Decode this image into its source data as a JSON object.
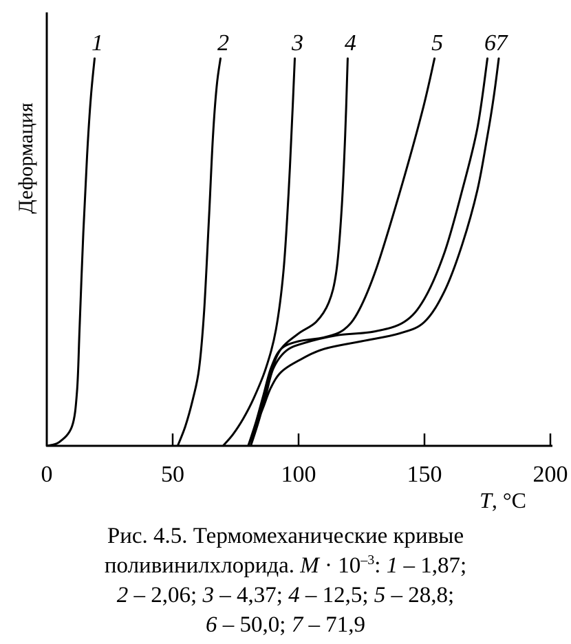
{
  "chart_data": {
    "type": "line",
    "ylabel": "Деформация",
    "xlabel_symbol": "T",
    "xlabel_unit": ", °C",
    "xlim": [
      0,
      200
    ],
    "ylim": [
      0,
      1
    ],
    "x_ticks": [
      0,
      50,
      100,
      150,
      200
    ],
    "x_tick_labels": [
      "0",
      "50",
      "100",
      "150",
      "200"
    ],
    "y_ticks": [],
    "grid": false,
    "legend": "curve labels at top",
    "series": [
      {
        "name": "1",
        "points": [
          [
            0,
            0
          ],
          [
            5,
            0.01
          ],
          [
            10,
            0.05
          ],
          [
            12,
            0.14
          ],
          [
            13,
            0.3
          ],
          [
            14.5,
            0.55
          ],
          [
            16,
            0.75
          ],
          [
            17.5,
            0.9
          ],
          [
            19,
            1.0
          ]
        ]
      },
      {
        "name": "2",
        "points": [
          [
            52,
            0
          ],
          [
            55,
            0.05
          ],
          [
            58,
            0.12
          ],
          [
            60.5,
            0.2
          ],
          [
            62.5,
            0.35
          ],
          [
            64.5,
            0.6
          ],
          [
            66,
            0.8
          ],
          [
            67.5,
            0.93
          ],
          [
            69,
            1.0
          ]
        ]
      },
      {
        "name": "3",
        "points": [
          [
            70,
            0
          ],
          [
            74,
            0.03
          ],
          [
            78,
            0.07
          ],
          [
            82,
            0.12
          ],
          [
            87,
            0.2
          ],
          [
            91,
            0.3
          ],
          [
            94,
            0.45
          ],
          [
            96,
            0.65
          ],
          [
            97.5,
            0.85
          ],
          [
            98.5,
            1.0
          ]
        ]
      },
      {
        "name": "4",
        "points": [
          [
            80,
            0
          ],
          [
            83,
            0.05
          ],
          [
            86,
            0.12
          ],
          [
            89,
            0.19
          ],
          [
            93,
            0.25
          ],
          [
            100,
            0.29
          ],
          [
            107,
            0.32
          ],
          [
            112,
            0.37
          ],
          [
            115,
            0.45
          ],
          [
            117,
            0.6
          ],
          [
            118.5,
            0.8
          ],
          [
            119.5,
            1.0
          ]
        ]
      },
      {
        "name": "5",
        "points": [
          [
            80,
            0
          ],
          [
            83,
            0.06
          ],
          [
            86,
            0.13
          ],
          [
            89,
            0.2
          ],
          [
            93,
            0.25
          ],
          [
            100,
            0.27
          ],
          [
            110,
            0.28
          ],
          [
            118,
            0.3
          ],
          [
            124,
            0.35
          ],
          [
            131,
            0.46
          ],
          [
            140,
            0.65
          ],
          [
            149,
            0.86
          ],
          [
            154,
            1.0
          ]
        ]
      },
      {
        "name": "6",
        "points": [
          [
            81,
            0
          ],
          [
            84,
            0.06
          ],
          [
            87,
            0.13
          ],
          [
            90,
            0.2
          ],
          [
            95,
            0.245
          ],
          [
            102,
            0.265
          ],
          [
            115,
            0.285
          ],
          [
            130,
            0.295
          ],
          [
            142,
            0.32
          ],
          [
            150,
            0.38
          ],
          [
            158,
            0.5
          ],
          [
            165,
            0.66
          ],
          [
            171,
            0.82
          ],
          [
            175,
            1.0
          ]
        ]
      },
      {
        "name": "7",
        "points": [
          [
            80,
            0
          ],
          [
            83,
            0.05
          ],
          [
            86,
            0.1
          ],
          [
            89,
            0.15
          ],
          [
            93,
            0.19
          ],
          [
            100,
            0.22
          ],
          [
            110,
            0.25
          ],
          [
            125,
            0.27
          ],
          [
            140,
            0.29
          ],
          [
            150,
            0.32
          ],
          [
            158,
            0.4
          ],
          [
            165,
            0.52
          ],
          [
            171,
            0.66
          ],
          [
            175,
            0.8
          ],
          [
            177.5,
            0.9
          ],
          [
            179.5,
            1.0
          ]
        ]
      }
    ]
  },
  "caption": {
    "line1": "Рис. 4.5. Термомеханические кривые",
    "line2_pre": "поливинилхлорида. ",
    "line2_M": "M",
    "line2_mid": " · 10",
    "line2_exp": "–3",
    "line2_colon": ": ",
    "line2_i1": "1",
    "line2_v1": " – 1,87;",
    "line3_i2": "2",
    "line3_v2": " – 2,06; ",
    "line3_i3": "3",
    "line3_v3": " – 4,37; ",
    "line3_i4": "4",
    "line3_v4": " – 12,5; ",
    "line3_i5": "5",
    "line3_v5": " – 28,8;",
    "line4_i6": "6",
    "line4_v6": " – 50,0; ",
    "line4_i7": "7",
    "line4_v7": " – 71,9"
  }
}
